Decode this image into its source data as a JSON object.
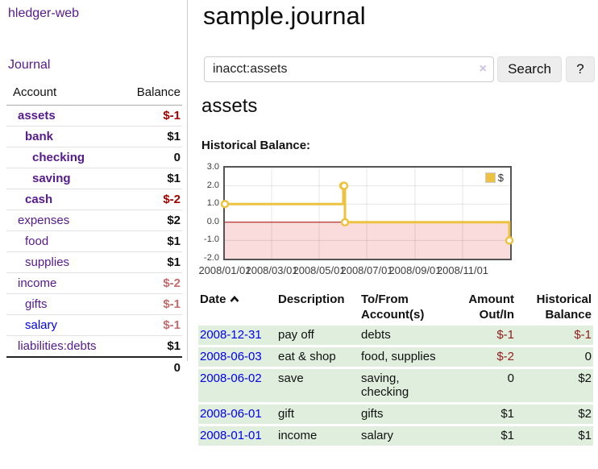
{
  "colors": {
    "link_purple": "#551a8b",
    "link_blue": "#0000ee",
    "negative_strong": "#a40000",
    "negative_table": "#941c1c",
    "negative_faded": "#c56b6b",
    "row_green": "#e0eedd",
    "chart_gold": "#edc240",
    "chart_negative_bg": "#fadcdc",
    "chart_zero_line": "#a00000"
  },
  "sidebar": {
    "app_title": "hledger-web",
    "journal_link": "Journal",
    "accounts_table": {
      "account_header": "Account",
      "balance_header": "Balance",
      "rows": [
        {
          "name": "assets",
          "balance": "$-1"
        },
        {
          "name": "bank",
          "balance": "$1"
        },
        {
          "name": "checking",
          "balance": "0"
        },
        {
          "name": "saving",
          "balance": "$1"
        },
        {
          "name": "cash",
          "balance": "$-2"
        },
        {
          "name": "expenses",
          "balance": "$2"
        },
        {
          "name": "food",
          "balance": "$1"
        },
        {
          "name": "supplies",
          "balance": "$1"
        },
        {
          "name": "income",
          "balance": "$-2"
        },
        {
          "name": "gifts",
          "balance": "$-1"
        },
        {
          "name": "salary",
          "balance": "$-1"
        },
        {
          "name": "liabilities:debts",
          "balance": "$1"
        }
      ],
      "total": "0"
    }
  },
  "main": {
    "title": "sample.journal",
    "search": {
      "value": "inacct:assets",
      "clear_icon": "×",
      "button_label": "Search",
      "help_label": "?"
    },
    "account_heading": "assets",
    "chart_label": "Historical Balance:",
    "register_table": {
      "headers": {
        "date": "Date",
        "description": "Description",
        "tofrom": "To/From\nAccount(s)",
        "amount": "Amount\nOut/In",
        "balance": "Historical\nBalance"
      },
      "rows": [
        {
          "date": "2008-12-31",
          "description": "pay off",
          "accounts": "debts",
          "amount": "$-1",
          "balance": "$-1"
        },
        {
          "date": "2008-06-03",
          "description": "eat & shop",
          "accounts": "food, supplies",
          "amount": "$-2",
          "balance": "0"
        },
        {
          "date": "2008-06-02",
          "description": "save",
          "accounts": "saving,\nchecking",
          "amount": "0",
          "balance": "$2"
        },
        {
          "date": "2008-06-01",
          "description": "gift",
          "accounts": "gifts",
          "amount": "$1",
          "balance": "$2"
        },
        {
          "date": "2008-01-01",
          "description": "income",
          "accounts": "salary",
          "amount": "$1",
          "balance": "$1"
        }
      ]
    }
  },
  "chart_data": {
    "type": "line",
    "title": "Historical Balance",
    "step": true,
    "series": [
      {
        "name": "$",
        "color": "#edc240",
        "points": [
          {
            "date": "2008-01-01",
            "value": 1
          },
          {
            "date": "2008-06-01",
            "value": 2
          },
          {
            "date": "2008-06-02",
            "value": 2
          },
          {
            "date": "2008-06-03",
            "value": 0
          },
          {
            "date": "2008-12-31",
            "value": -1
          }
        ]
      }
    ],
    "x_range": [
      "2008-01-01",
      "2009-01-01"
    ],
    "ylim": [
      -2,
      3
    ],
    "y_ticks": [
      3.0,
      2.0,
      1.0,
      0.0,
      -1.0,
      -2.0
    ],
    "y_tick_labels": [
      "3.0",
      "2.0",
      "1.0",
      "0.0",
      "-1.0",
      "-2.0"
    ],
    "x_ticks": [
      "2008-01-01",
      "2008-03-01",
      "2008-05-01",
      "2008-07-01",
      "2008-09-01",
      "2008-11-01"
    ],
    "x_tick_labels": [
      "2008/01/01",
      "2008/03/01",
      "2008/05/01",
      "2008/07/01",
      "2008/09/01",
      "2008/11/01"
    ],
    "grid": true,
    "legend": {
      "label": "$",
      "position": "top-right"
    }
  }
}
